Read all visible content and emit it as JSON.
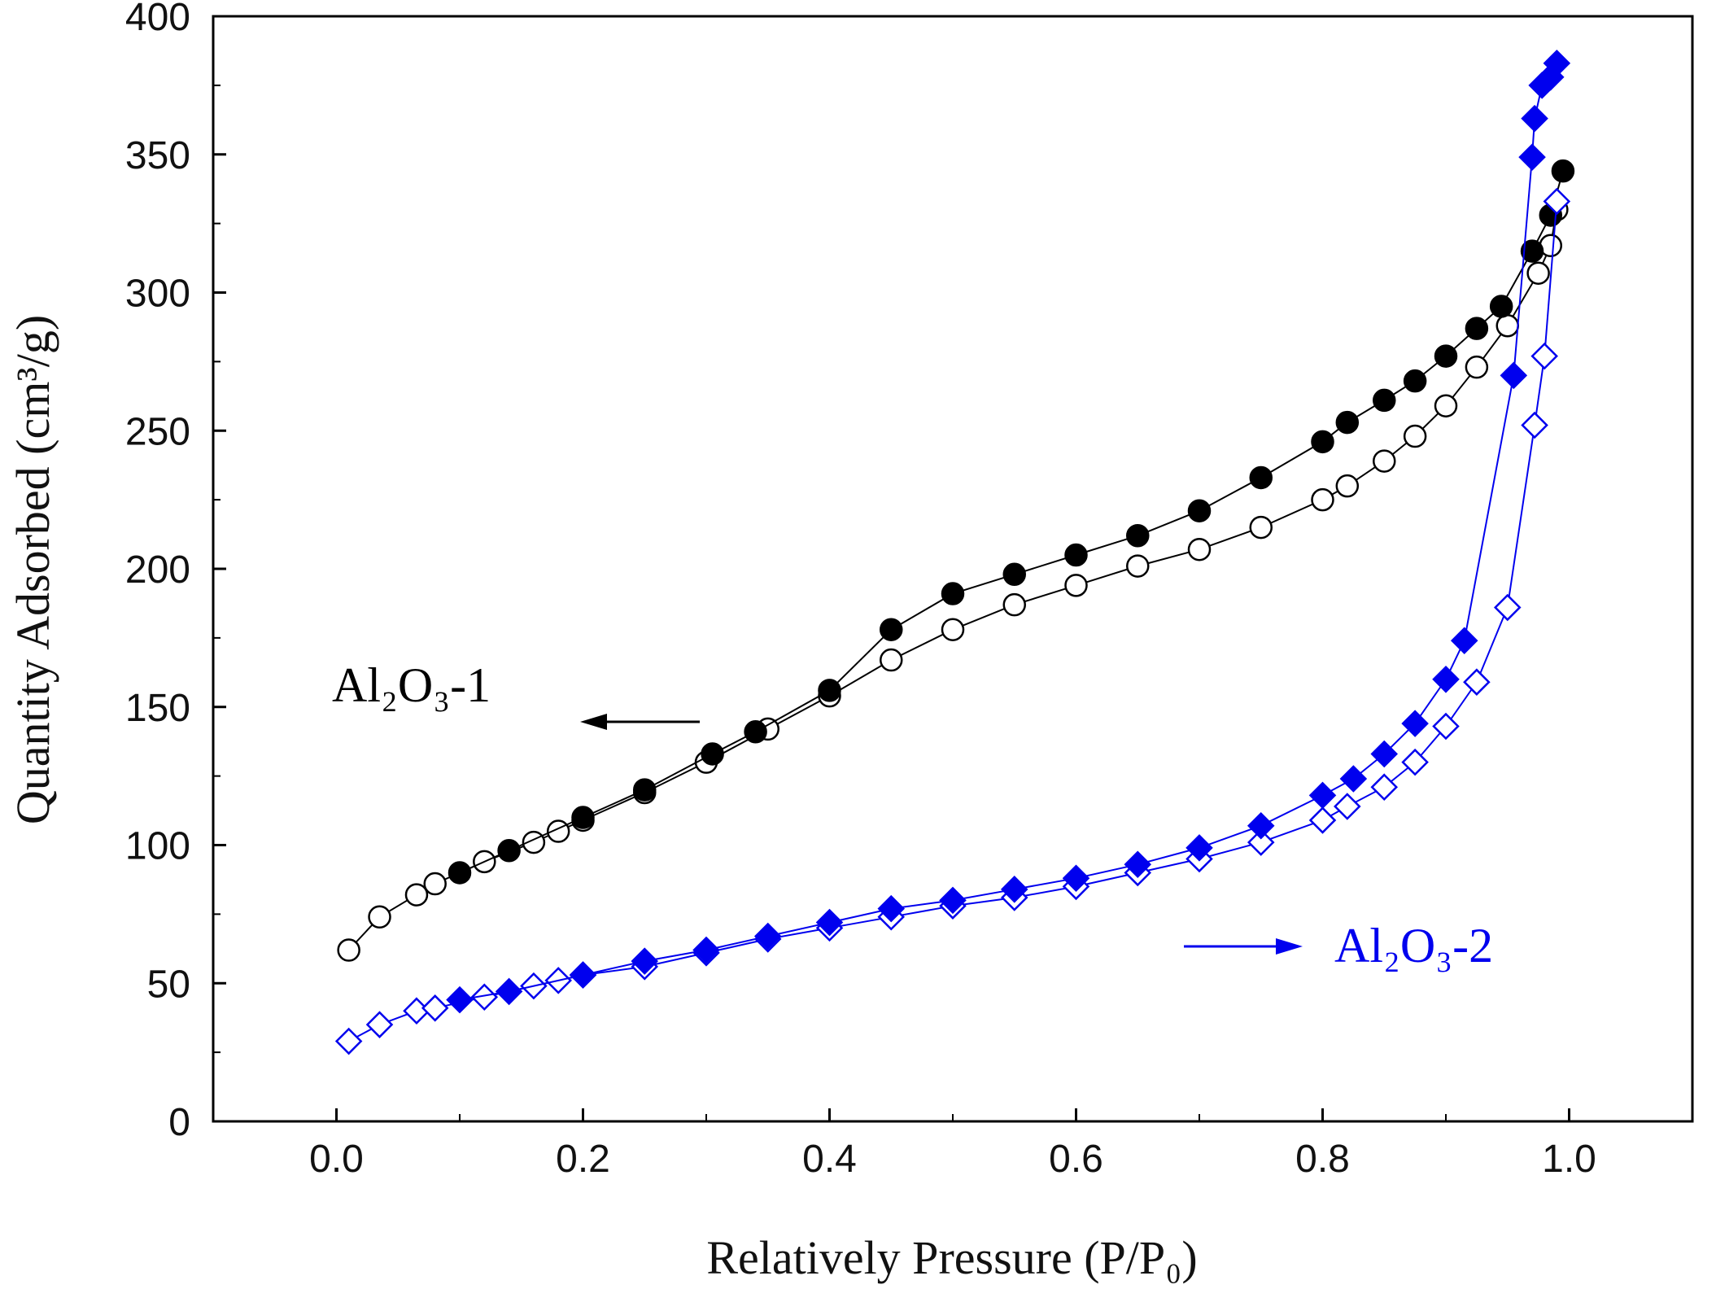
{
  "chart_data": {
    "type": "scatter",
    "xlabel": "Relatively Pressure (P/P₀)",
    "ylabel": "Quantity Adsorbed (cm³/g)",
    "xlim": [
      -0.1,
      1.1
    ],
    "ylim": [
      0,
      400
    ],
    "xticks": [
      "0.0",
      "0.2",
      "0.4",
      "0.6",
      "0.8",
      "1.0"
    ],
    "yticks": [
      "0",
      "50",
      "100",
      "150",
      "200",
      "250",
      "300",
      "350",
      "400"
    ],
    "grid": false,
    "series": [
      {
        "name": "Al₂O₃-1",
        "color": "#000000",
        "branches": [
          {
            "marker": "circle-open",
            "x": [
              0.01,
              0.035,
              0.065,
              0.08,
              0.12,
              0.16,
              0.18,
              0.2,
              0.25,
              0.3,
              0.35,
              0.4,
              0.45,
              0.5,
              0.55,
              0.6,
              0.65,
              0.7,
              0.75,
              0.8,
              0.82,
              0.85,
              0.875,
              0.9,
              0.925,
              0.95,
              0.975,
              0.985,
              0.99
            ],
            "y": [
              62,
              74,
              82,
              86,
              94,
              101,
              105,
              109,
              119,
              130,
              142,
              154,
              167,
              178,
              187,
              194,
              201,
              207,
              215,
              225,
              230,
              239,
              248,
              259,
              273,
              288,
              307,
              317,
              330
            ]
          },
          {
            "marker": "circle-filled",
            "x": [
              0.1,
              0.14,
              0.2,
              0.25,
              0.305,
              0.34,
              0.4,
              0.45,
              0.5,
              0.55,
              0.6,
              0.65,
              0.7,
              0.75,
              0.8,
              0.82,
              0.85,
              0.875,
              0.9,
              0.925,
              0.945,
              0.97,
              0.985,
              0.995
            ],
            "y": [
              90,
              98,
              110,
              120,
              133,
              141,
              156,
              178,
              191,
              198,
              205,
              212,
              221,
              233,
              246,
              253,
              261,
              268,
              277,
              287,
              295,
              315,
              328,
              344
            ]
          }
        ]
      },
      {
        "name": "Al₂O₃-2",
        "color": "#0000ee",
        "branches": [
          {
            "marker": "diamond-open",
            "x": [
              0.01,
              0.035,
              0.065,
              0.08,
              0.12,
              0.16,
              0.18,
              0.2,
              0.25,
              0.3,
              0.35,
              0.4,
              0.45,
              0.5,
              0.55,
              0.6,
              0.65,
              0.7,
              0.75,
              0.8,
              0.82,
              0.85,
              0.875,
              0.9,
              0.925,
              0.95,
              0.972,
              0.98,
              0.99
            ],
            "y": [
              29,
              35,
              40,
              41,
              45,
              49,
              51,
              53,
              56,
              61,
              66,
              70,
              74,
              78,
              81,
              85,
              90,
              95,
              101,
              109,
              114,
              121,
              130,
              143,
              159,
              186,
              252,
              277,
              333
            ]
          },
          {
            "marker": "diamond-filled",
            "x": [
              0.1,
              0.14,
              0.2,
              0.25,
              0.3,
              0.35,
              0.4,
              0.45,
              0.5,
              0.55,
              0.6,
              0.65,
              0.7,
              0.75,
              0.8,
              0.825,
              0.85,
              0.875,
              0.9,
              0.915,
              0.955,
              0.97,
              0.972,
              0.978,
              0.985,
              0.99
            ],
            "y": [
              44,
              47,
              53,
              58,
              62,
              67,
              72,
              77,
              80,
              84,
              88,
              93,
              99,
              107,
              118,
              124,
              133,
              144,
              160,
              174,
              270,
              349,
              363,
              375,
              378,
              383
            ]
          }
        ]
      }
    ],
    "annotations": [
      {
        "label": "Al₂O₃-1",
        "arrow": "left",
        "color": "#000000"
      },
      {
        "label": "Al₂O₃-2",
        "arrow": "right",
        "color": "#0000ee"
      }
    ]
  }
}
